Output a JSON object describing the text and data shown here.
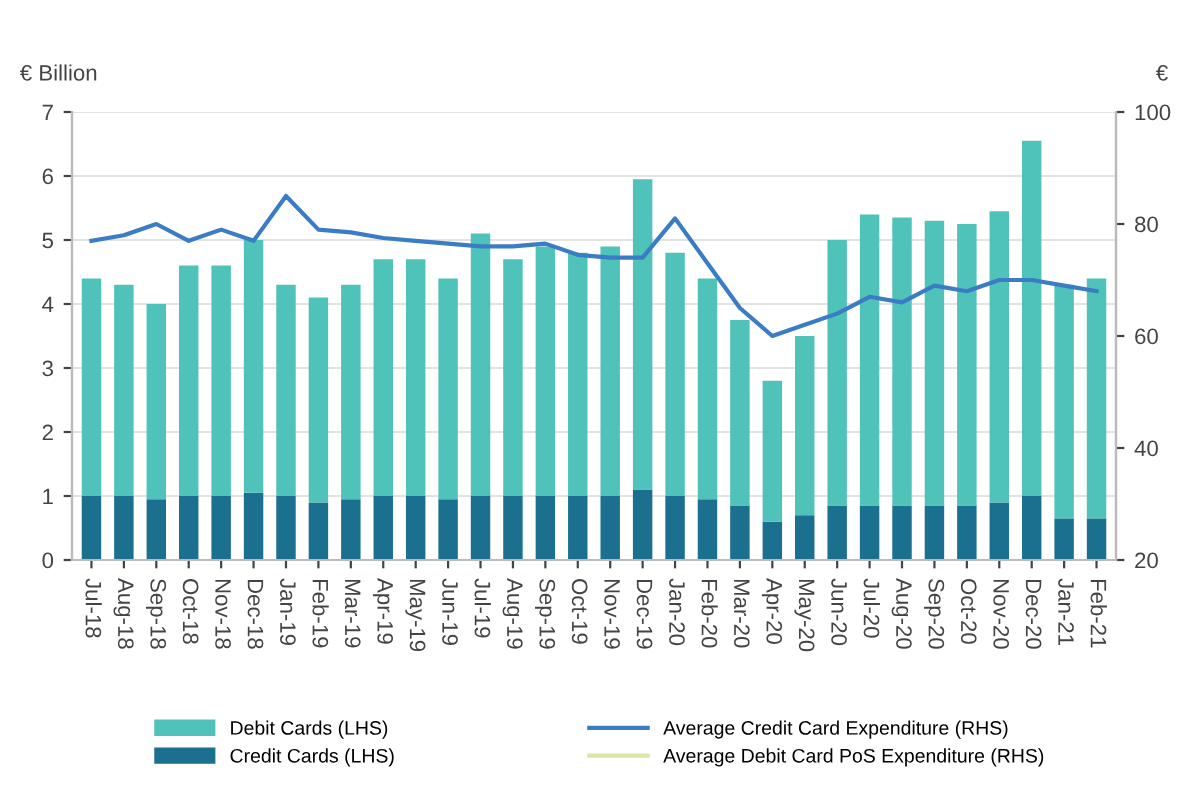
{
  "chart_data": {
    "type": "bar",
    "stacked": true,
    "ylabel": "€ Billion",
    "y2label": "€",
    "categories": [
      "Jul-18",
      "Aug-18",
      "Sep-18",
      "Oct-18",
      "Nov-18",
      "Dec-18",
      "Jan-19",
      "Feb-19",
      "Mar-19",
      "Apr-19",
      "May-19",
      "Jun-19",
      "Jul-19",
      "Aug-19",
      "Sep-19",
      "Oct-19",
      "Nov-19",
      "Dec-19",
      "Jan-20",
      "Feb-20",
      "Mar-20",
      "Apr-20",
      "May-20",
      "Jun-20",
      "Jul-20",
      "Aug-20",
      "Sep-20",
      "Oct-20",
      "Nov-20",
      "Dec-20",
      "Jan-21",
      "Feb-21"
    ],
    "series": [
      {
        "name": "Credit Cards (LHS)",
        "color": "#1b6f8f",
        "values": [
          1.0,
          1.0,
          0.95,
          1.0,
          1.0,
          1.05,
          1.0,
          0.9,
          0.95,
          1.0,
          1.0,
          0.95,
          1.0,
          1.0,
          1.0,
          1.0,
          1.0,
          1.1,
          1.0,
          0.95,
          0.85,
          0.6,
          0.7,
          0.85,
          0.85,
          0.85,
          0.85,
          0.85,
          0.9,
          1.0,
          0.65,
          0.65
        ]
      },
      {
        "name": "Debit Cards (LHS)",
        "color": "#4fc3b9",
        "values": [
          3.4,
          3.3,
          3.05,
          3.6,
          3.6,
          3.95,
          3.3,
          3.2,
          3.35,
          3.7,
          3.7,
          3.45,
          4.1,
          3.7,
          3.9,
          3.8,
          3.9,
          4.85,
          3.8,
          3.45,
          2.9,
          2.2,
          2.8,
          4.15,
          4.55,
          4.5,
          4.45,
          4.4,
          4.55,
          5.55,
          3.65,
          3.75
        ]
      },
      {
        "name": "Average Credit Card Expenditure (RHS)",
        "type": "line",
        "axis": "y2",
        "color": "#3b7dc4",
        "values": [
          77,
          78,
          80,
          77,
          79,
          77,
          85,
          79,
          78.5,
          77.5,
          77,
          76.5,
          76,
          76,
          76.5,
          74.5,
          74,
          74,
          81,
          73,
          65,
          60,
          62,
          64,
          67,
          66,
          69,
          68,
          70,
          70,
          69,
          68
        ]
      },
      {
        "name": "Average Debit Card PoS Expenditure (RHS)",
        "type": "line",
        "axis": "y2",
        "color": "#dce6a6",
        "values": [
          null,
          null,
          null,
          null,
          null,
          null,
          null,
          null,
          null,
          null,
          null,
          null,
          null,
          null,
          null,
          null,
          null,
          null,
          null,
          null,
          null,
          null,
          null,
          null,
          null,
          null,
          null,
          null,
          null,
          null,
          null,
          null
        ]
      }
    ],
    "ylim": [
      0,
      7
    ],
    "yticks": [
      0,
      1,
      2,
      3,
      4,
      5,
      6,
      7
    ],
    "y2lim": [
      20,
      100
    ],
    "y2ticks": [
      20,
      40,
      60,
      80,
      100
    ],
    "grid": "y",
    "legend": "bottom"
  }
}
